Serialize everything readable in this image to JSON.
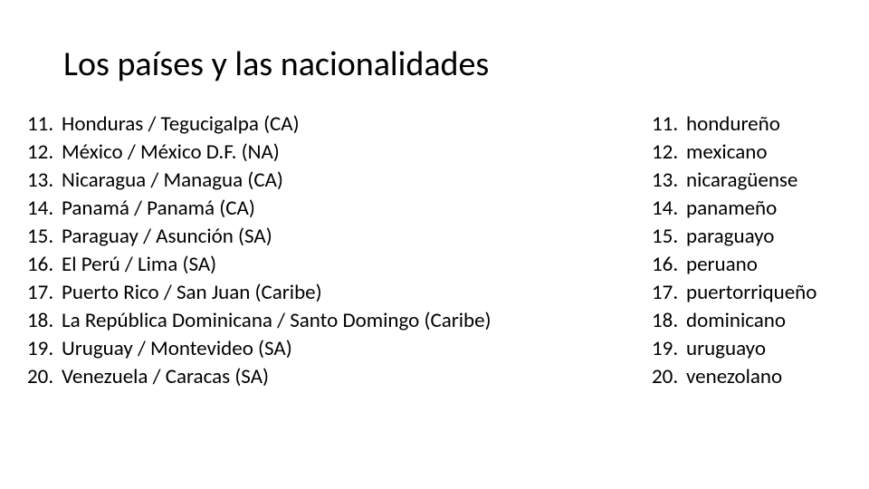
{
  "title": "Los países y las nacionalidades",
  "left_list": {
    "items": [
      {
        "num": "11.",
        "text": "Honduras / Tegucigalpa (CA)"
      },
      {
        "num": "12.",
        "text": "México / México D.F. (NA)"
      },
      {
        "num": "13.",
        "text": "Nicaragua / Managua (CA)"
      },
      {
        "num": "14.",
        "text": "Panamá / Panamá (CA)"
      },
      {
        "num": "15.",
        "text": "Paraguay / Asunción (SA)"
      },
      {
        "num": "16.",
        "text": "El Perú / Lima (SA)"
      },
      {
        "num": "17.",
        "text": "Puerto Rico / San Juan (Caribe)"
      },
      {
        "num": "18.",
        "text": "La República Dominicana / Santo Domingo (Caribe)"
      },
      {
        "num": "19.",
        "text": "Uruguay / Montevideo (SA)"
      },
      {
        "num": "20.",
        "text": "Venezuela / Caracas (SA)"
      }
    ]
  },
  "right_list": {
    "items": [
      {
        "num": "11.",
        "text": "hondureño"
      },
      {
        "num": "12.",
        "text": "mexicano"
      },
      {
        "num": "13.",
        "text": "nicaragüense"
      },
      {
        "num": "14.",
        "text": "panameño"
      },
      {
        "num": "15.",
        "text": "paraguayo"
      },
      {
        "num": "16.",
        "text": "peruano"
      },
      {
        "num": "17.",
        "text": "puertorriqueño"
      },
      {
        "num": "18.",
        "text": "dominicano"
      },
      {
        "num": "19.",
        "text": "uruguayo"
      },
      {
        "num": "20.",
        "text": "venezolano"
      }
    ]
  },
  "style": {
    "background_color": "#ffffff",
    "text_color": "#000000",
    "title_fontsize": 38,
    "body_fontsize": 23,
    "font_family": "Calibri, Arial, sans-serif"
  }
}
